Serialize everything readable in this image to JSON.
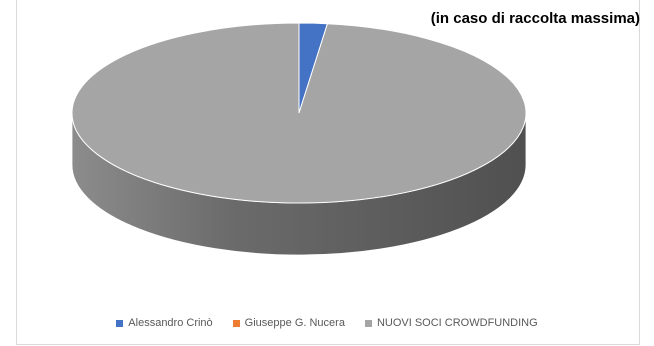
{
  "chart_data": {
    "type": "pie",
    "title": "(in caso di raccolta massima)",
    "categories": [
      "Alessandro Crinò",
      "Giuseppe G. Nucera",
      "NUOVI SOCI CROWDFUNDING"
    ],
    "values": [
      2,
      0,
      98
    ],
    "colors": [
      "#4472c4",
      "#ed7d31",
      "#a5a5a5"
    ],
    "legend_position": "bottom",
    "style": "3d"
  }
}
